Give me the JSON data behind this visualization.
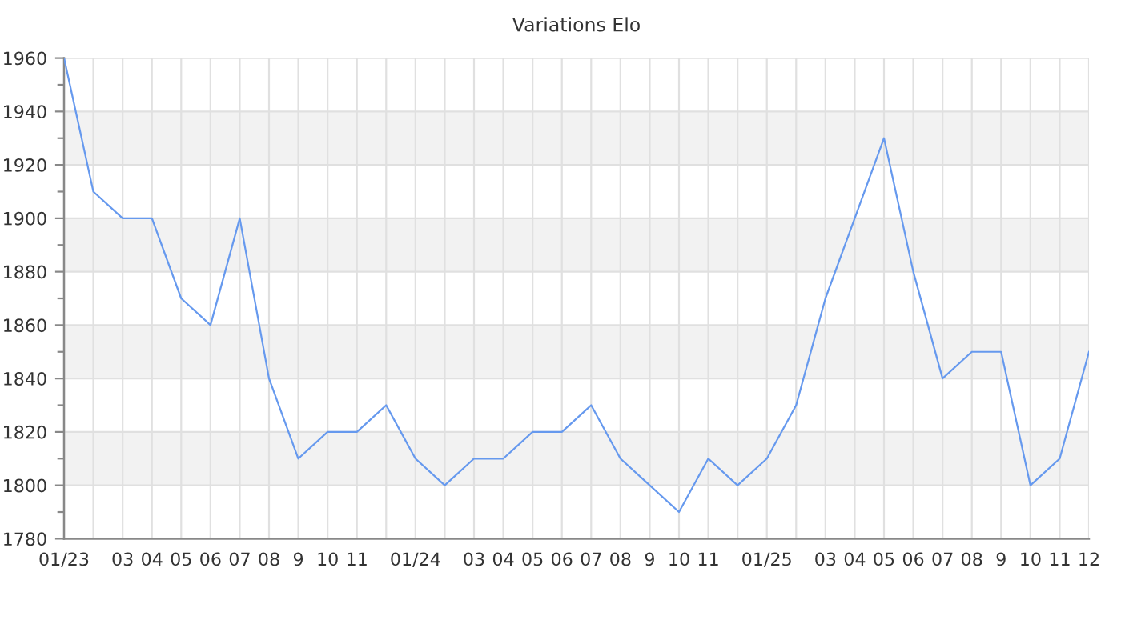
{
  "chart_data": {
    "type": "line",
    "title": "Variations Elo",
    "categories": [
      "01/23",
      null,
      "03",
      "04",
      "05",
      "06",
      "07",
      "08",
      "9",
      "10",
      "11",
      null,
      "01/24",
      null,
      "03",
      "04",
      "05",
      "06",
      "07",
      "08",
      "9",
      "10",
      "11",
      null,
      "01/25",
      null,
      "03",
      "04",
      "05",
      "06",
      "07",
      "08",
      "9",
      "10",
      "11",
      "12"
    ],
    "series": [
      {
        "color": "#6699ee",
        "values": [
          1960,
          1910,
          1900,
          1900,
          1870,
          1860,
          1900,
          1840,
          1810,
          1820,
          1820,
          1830,
          1810,
          1800,
          1810,
          1810,
          1820,
          1820,
          1830,
          1810,
          1800,
          1790,
          1810,
          1800,
          1810,
          1830,
          1870,
          1900,
          1930,
          1880,
          1840,
          1850,
          1850,
          1800,
          1810,
          1850
        ]
      }
    ],
    "ylim": [
      1780,
      1960
    ],
    "yticks": [
      1780,
      1800,
      1820,
      1840,
      1860,
      1880,
      1900,
      1920,
      1940,
      1960
    ],
    "bands": [
      {
        "axis": "y",
        "from": 1800,
        "to": 1820,
        "color": "#f2f2f2"
      },
      {
        "axis": "y",
        "from": 1840,
        "to": 1860,
        "color": "#f2f2f2"
      },
      {
        "axis": "y",
        "from": 1880,
        "to": 1900,
        "color": "#f2f2f2"
      },
      {
        "axis": "y",
        "from": 1920,
        "to": 1940,
        "color": "#f2f2f2"
      }
    ],
    "grid": true,
    "line_style": "solid"
  }
}
